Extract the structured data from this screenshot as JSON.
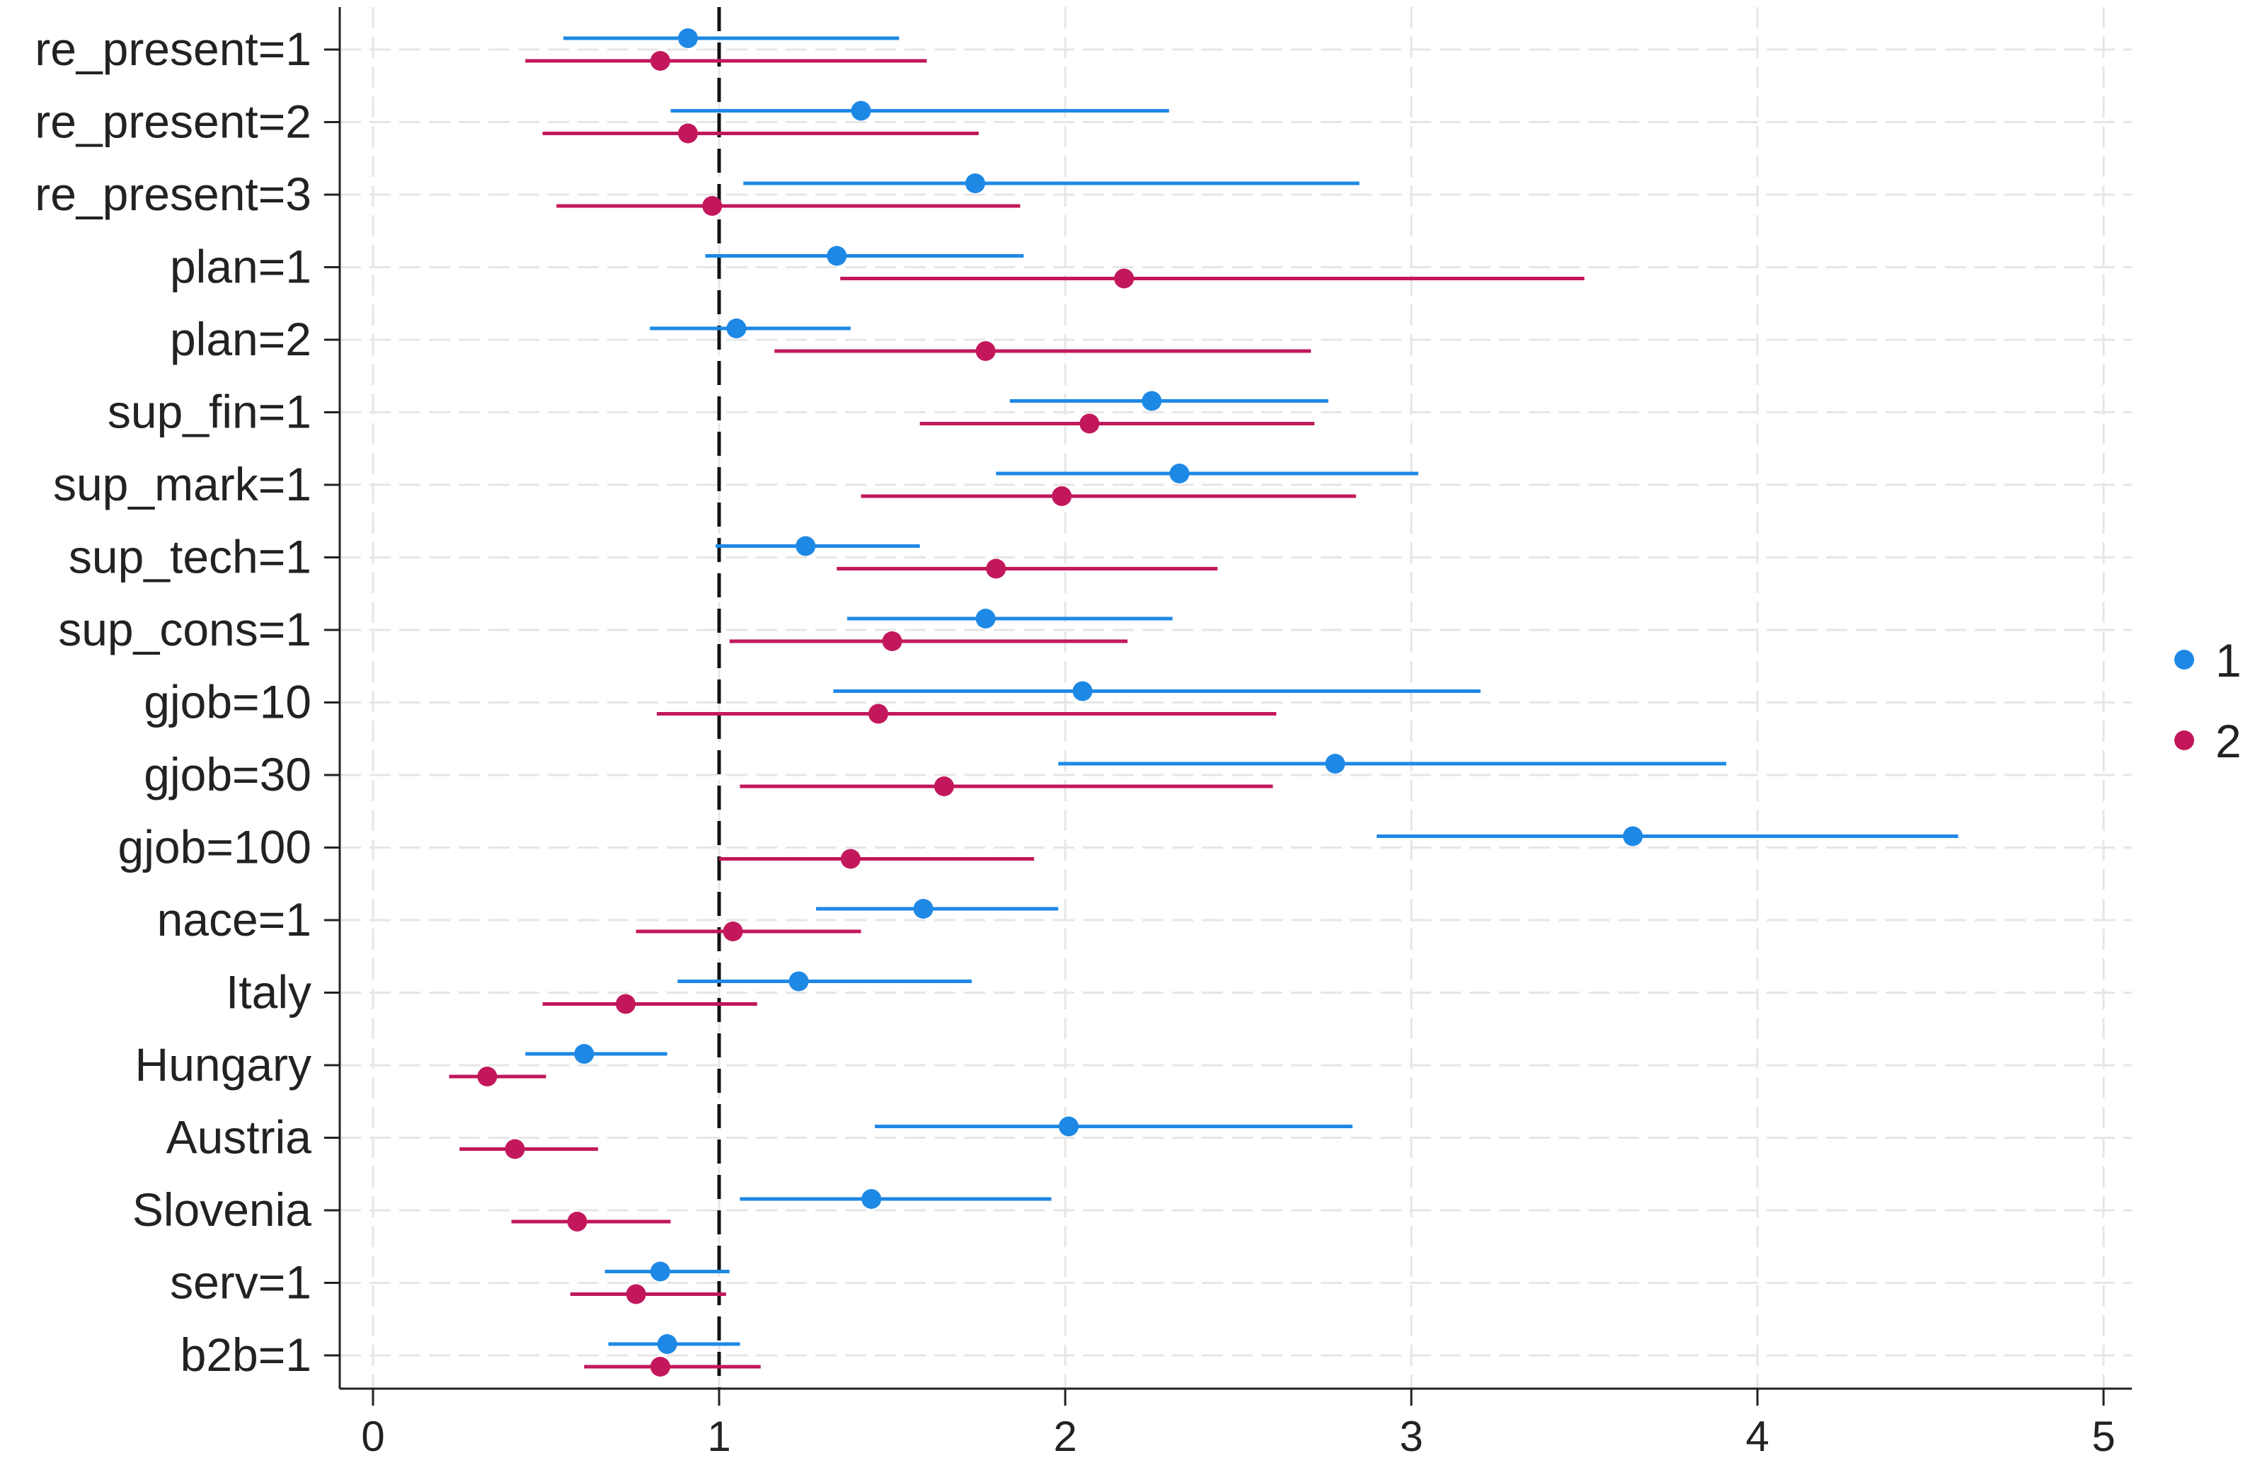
{
  "chart_data": {
    "type": "dot-and-whisker",
    "title": "",
    "xlabel": "",
    "ylabel": "",
    "xlim": [
      -0.1,
      5.1
    ],
    "xticks": [
      0,
      1,
      2,
      3,
      4,
      5
    ],
    "xtick_labels": [
      "0",
      "1",
      "2",
      "3",
      "4",
      "5"
    ],
    "reference_line": 1,
    "grid": true,
    "legend_position": "right",
    "categories": [
      "re_present=1",
      "re_present=2",
      "re_present=3",
      "plan=1",
      "plan=2",
      "sup_fin=1",
      "sup_mark=1",
      "sup_tech=1",
      "sup_cons=1",
      "gjob=10",
      "gjob=30",
      "gjob=100",
      "nace=1",
      "Italy",
      "Hungary",
      "Austria",
      "Slovenia",
      "serv=1",
      "b2b=1"
    ],
    "series": [
      {
        "name": "1",
        "color": "#1e88e5",
        "estimates": [
          0.91,
          1.41,
          1.74,
          1.34,
          1.05,
          2.25,
          2.33,
          1.25,
          1.77,
          2.05,
          2.78,
          3.64,
          1.59,
          1.23,
          0.61,
          2.01,
          1.44,
          0.83,
          0.85
        ],
        "lower": [
          0.55,
          0.86,
          1.07,
          0.96,
          0.8,
          1.84,
          1.8,
          0.99,
          1.37,
          1.33,
          1.98,
          2.9,
          1.28,
          0.88,
          0.44,
          1.45,
          1.06,
          0.67,
          0.68
        ],
        "upper": [
          1.52,
          2.3,
          2.85,
          1.88,
          1.38,
          2.76,
          3.02,
          1.58,
          2.31,
          3.2,
          3.91,
          4.58,
          1.98,
          1.73,
          0.85,
          2.83,
          1.96,
          1.03,
          1.06
        ]
      },
      {
        "name": "2",
        "color": "#c2185b",
        "estimates": [
          0.83,
          0.91,
          0.98,
          2.17,
          1.77,
          2.07,
          1.99,
          1.8,
          1.5,
          1.46,
          1.65,
          1.38,
          1.04,
          0.73,
          0.33,
          0.41,
          0.59,
          0.76,
          0.83
        ],
        "lower": [
          0.44,
          0.49,
          0.53,
          1.35,
          1.16,
          1.58,
          1.41,
          1.34,
          1.03,
          0.82,
          1.06,
          1.0,
          0.76,
          0.49,
          0.22,
          0.25,
          0.4,
          0.57,
          0.61
        ],
        "upper": [
          1.6,
          1.75,
          1.87,
          3.5,
          2.71,
          2.72,
          2.84,
          2.44,
          2.18,
          2.61,
          2.6,
          1.91,
          1.41,
          1.11,
          0.5,
          0.65,
          0.86,
          1.02,
          1.12
        ]
      }
    ],
    "legend_entries": [
      "1",
      "2"
    ]
  }
}
